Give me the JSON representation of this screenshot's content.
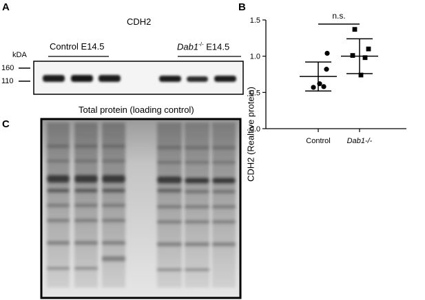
{
  "panels": {
    "a": {
      "letter": "A",
      "title": "CDH2",
      "group_control": "Control E14.5",
      "group_mutant_gene": "Dab1",
      "group_mutant_sup": "-/-",
      "group_mutant_rest": " E14.5",
      "kda_label": "kDA",
      "markers": [
        "160",
        "110"
      ],
      "loading_title": "Total protein (loading control)"
    },
    "b": {
      "letter": "B"
    },
    "c": {
      "letter": "C"
    }
  },
  "chart_data": {
    "type": "scatter",
    "ylabel": "CDH2 (Realtive protein)",
    "categories": [
      "Control",
      "Dab1-/-"
    ],
    "ylim": [
      0.0,
      1.5
    ],
    "yticks": [
      "0.0",
      "0.5",
      "1.0",
      "1.5"
    ],
    "annotation": "n.s.",
    "grid": false,
    "series": [
      {
        "category": "Control",
        "marker": "circle",
        "values": [
          1.04,
          0.82,
          0.58,
          0.57,
          0.62
        ],
        "mean": 0.72,
        "sd_low": 0.52,
        "sd_high": 0.92
      },
      {
        "category": "Dab1-/-",
        "marker": "square",
        "values": [
          1.37,
          1.1,
          1.01,
          0.98,
          0.74
        ],
        "mean": 1.0,
        "sd_low": 0.76,
        "sd_high": 1.24
      }
    ]
  },
  "colors": {
    "ink": "#000000",
    "blot_bg": "#f4f4f4",
    "band": "#1c1c1c"
  }
}
